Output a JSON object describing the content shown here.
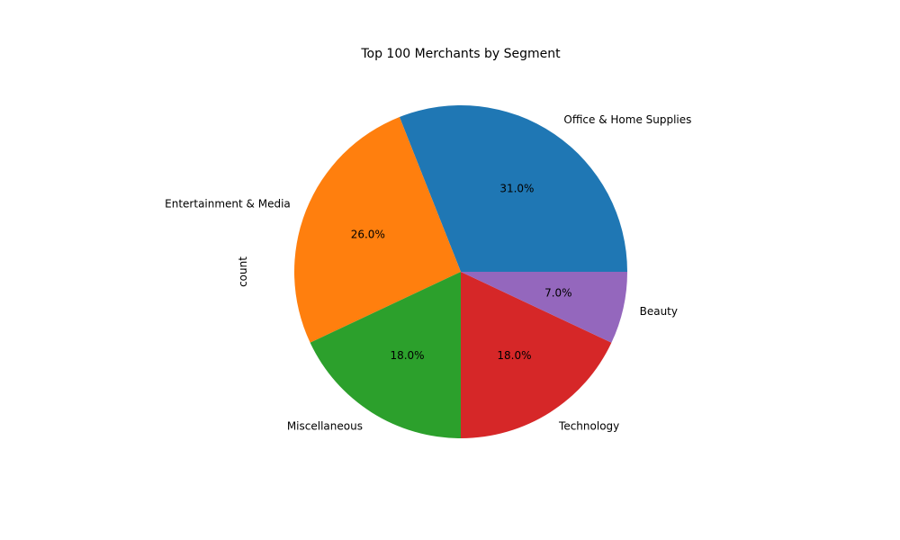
{
  "chart_data": {
    "type": "pie",
    "title": "Top 100 Merchants by Segment",
    "ylabel": "count",
    "categories": [
      "Office & Home Supplies",
      "Entertainment & Media",
      "Miscellaneous",
      "Technology",
      "Beauty"
    ],
    "values": [
      31,
      26,
      18,
      18,
      7
    ],
    "percent_labels": [
      "31.0%",
      "26.0%",
      "18.0%",
      "18.0%",
      "7.0%"
    ],
    "colors": [
      "#1f77b4",
      "#ff7f0e",
      "#2ca02c",
      "#d62728",
      "#9467bd"
    ],
    "start_angle_deg": 0,
    "direction": "counterclockwise"
  }
}
